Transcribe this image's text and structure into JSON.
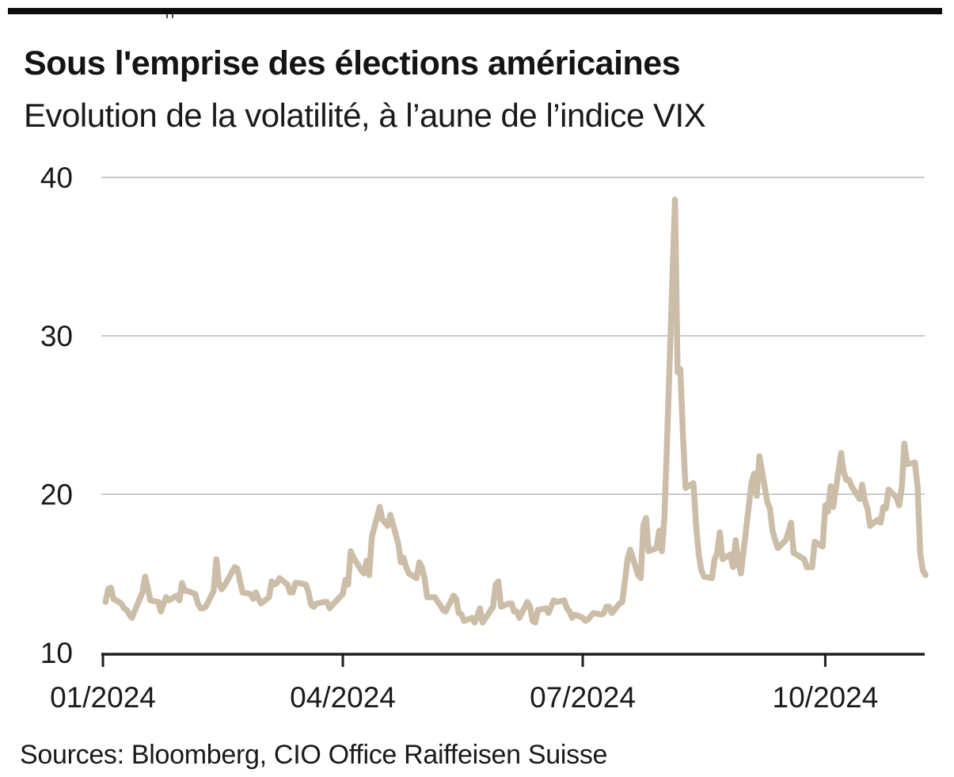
{
  "header": {
    "title": "Sous l'emprise des élections américaines",
    "subtitle": "Evolution de la volatilité, à l’aune de l’indice VIX"
  },
  "footer": {
    "source": "Sources: Bloomberg, CIO Office Raiffeisen Suisse"
  },
  "chart_data": {
    "type": "line",
    "title": "Sous l'emprise des élections américaines",
    "subtitle": "Evolution de la volatilité, à l’aune de l’indice VIX",
    "source": "Sources: Bloomberg, CIO Office Raiffeisen Suisse",
    "ylim": [
      10,
      40
    ],
    "yticks": [
      40,
      30,
      20,
      10
    ],
    "grid": "horizontal-only",
    "legend": "none",
    "line_color": "#cbbda7",
    "axis_color": "#1f1f1f",
    "grid_color": "#c9c9c9",
    "xticks": [
      {
        "label": "01/2024",
        "date": "01-01"
      },
      {
        "label": "04/2024",
        "date": "04-01"
      },
      {
        "label": "07/2024",
        "date": "07-01"
      },
      {
        "label": "10/2024",
        "date": "10-01"
      }
    ],
    "series": [
      {
        "name": "VIX",
        "year": 2024,
        "points": [
          [
            "01-02",
            13.2
          ],
          [
            "01-03",
            14.0
          ],
          [
            "01-04",
            14.1
          ],
          [
            "01-05",
            13.4
          ],
          [
            "01-08",
            13.1
          ],
          [
            "01-09",
            12.8
          ],
          [
            "01-10",
            12.7
          ],
          [
            "01-11",
            12.4
          ],
          [
            "01-12",
            12.2
          ],
          [
            "01-16",
            13.8
          ],
          [
            "01-17",
            14.8
          ],
          [
            "01-18",
            14.1
          ],
          [
            "01-19",
            13.3
          ],
          [
            "01-22",
            13.2
          ],
          [
            "01-23",
            12.6
          ],
          [
            "01-24",
            13.1
          ],
          [
            "01-25",
            13.5
          ],
          [
            "01-26",
            13.3
          ],
          [
            "01-29",
            13.6
          ],
          [
            "01-30",
            13.3
          ],
          [
            "01-31",
            14.4
          ],
          [
            "02-01",
            13.9
          ],
          [
            "02-02",
            13.9
          ],
          [
            "02-05",
            13.7
          ],
          [
            "02-06",
            13.1
          ],
          [
            "02-07",
            12.8
          ],
          [
            "02-08",
            12.8
          ],
          [
            "02-09",
            12.9
          ],
          [
            "02-12",
            13.9
          ],
          [
            "02-13",
            15.9
          ],
          [
            "02-14",
            14.4
          ],
          [
            "02-15",
            14.0
          ],
          [
            "02-16",
            14.2
          ],
          [
            "02-20",
            15.4
          ],
          [
            "02-21",
            15.3
          ],
          [
            "02-22",
            14.5
          ],
          [
            "02-23",
            13.8
          ],
          [
            "02-26",
            13.7
          ],
          [
            "02-27",
            13.4
          ],
          [
            "02-28",
            13.8
          ],
          [
            "02-29",
            13.4
          ],
          [
            "03-01",
            13.1
          ],
          [
            "03-04",
            13.5
          ],
          [
            "03-05",
            14.5
          ],
          [
            "03-06",
            14.3
          ],
          [
            "03-07",
            14.4
          ],
          [
            "03-08",
            14.7
          ],
          [
            "03-11",
            14.3
          ],
          [
            "03-12",
            13.8
          ],
          [
            "03-13",
            13.8
          ],
          [
            "03-14",
            14.4
          ],
          [
            "03-15",
            14.4
          ],
          [
            "03-18",
            14.3
          ],
          [
            "03-19",
            13.8
          ],
          [
            "03-20",
            13.0
          ],
          [
            "03-21",
            12.9
          ],
          [
            "03-22",
            13.1
          ],
          [
            "03-25",
            13.2
          ],
          [
            "03-26",
            13.2
          ],
          [
            "03-27",
            12.8
          ],
          [
            "03-28",
            13.0
          ],
          [
            "04-01",
            13.7
          ],
          [
            "04-02",
            14.6
          ],
          [
            "04-03",
            14.3
          ],
          [
            "04-04",
            16.4
          ],
          [
            "04-05",
            16.0
          ],
          [
            "04-08",
            15.2
          ],
          [
            "04-09",
            15.0
          ],
          [
            "04-10",
            15.8
          ],
          [
            "04-11",
            14.9
          ],
          [
            "04-12",
            17.3
          ],
          [
            "04-15",
            19.2
          ],
          [
            "04-16",
            18.4
          ],
          [
            "04-17",
            18.2
          ],
          [
            "04-18",
            18.0
          ],
          [
            "04-19",
            18.7
          ],
          [
            "04-22",
            16.9
          ],
          [
            "04-23",
            15.7
          ],
          [
            "04-24",
            16.0
          ],
          [
            "04-25",
            15.4
          ],
          [
            "04-26",
            15.0
          ],
          [
            "04-29",
            14.7
          ],
          [
            "04-30",
            15.7
          ],
          [
            "05-01",
            15.4
          ],
          [
            "05-02",
            14.7
          ],
          [
            "05-03",
            13.5
          ],
          [
            "05-06",
            13.5
          ],
          [
            "05-07",
            13.2
          ],
          [
            "05-08",
            13.0
          ],
          [
            "05-09",
            12.7
          ],
          [
            "05-10",
            12.6
          ],
          [
            "05-13",
            13.6
          ],
          [
            "05-14",
            13.4
          ],
          [
            "05-15",
            12.5
          ],
          [
            "05-16",
            12.4
          ],
          [
            "05-17",
            12.0
          ],
          [
            "05-20",
            12.2
          ],
          [
            "05-21",
            11.9
          ],
          [
            "05-22",
            12.3
          ],
          [
            "05-23",
            12.8
          ],
          [
            "05-24",
            11.9
          ],
          [
            "05-28",
            12.9
          ],
          [
            "05-29",
            14.3
          ],
          [
            "05-30",
            14.5
          ],
          [
            "05-31",
            12.9
          ],
          [
            "06-03",
            13.1
          ],
          [
            "06-04",
            13.1
          ],
          [
            "06-05",
            12.6
          ],
          [
            "06-06",
            12.6
          ],
          [
            "06-07",
            12.2
          ],
          [
            "06-10",
            13.2
          ],
          [
            "06-11",
            12.9
          ],
          [
            "06-12",
            12.0
          ],
          [
            "06-13",
            11.9
          ],
          [
            "06-14",
            12.7
          ],
          [
            "06-17",
            12.8
          ],
          [
            "06-18",
            12.5
          ],
          [
            "06-20",
            13.3
          ],
          [
            "06-21",
            13.2
          ],
          [
            "06-24",
            13.3
          ],
          [
            "06-25",
            12.8
          ],
          [
            "06-26",
            12.6
          ],
          [
            "06-27",
            12.2
          ],
          [
            "06-28",
            12.4
          ],
          [
            "07-01",
            12.2
          ],
          [
            "07-02",
            12.0
          ],
          [
            "07-03",
            12.1
          ],
          [
            "07-05",
            12.5
          ],
          [
            "07-08",
            12.4
          ],
          [
            "07-09",
            12.5
          ],
          [
            "07-10",
            12.9
          ],
          [
            "07-11",
            12.9
          ],
          [
            "07-12",
            12.5
          ],
          [
            "07-15",
            13.1
          ],
          [
            "07-16",
            13.2
          ],
          [
            "07-17",
            14.5
          ],
          [
            "07-18",
            15.9
          ],
          [
            "07-19",
            16.5
          ],
          [
            "07-22",
            14.9
          ],
          [
            "07-23",
            14.7
          ],
          [
            "07-24",
            18.0
          ],
          [
            "07-25",
            18.5
          ],
          [
            "07-26",
            16.4
          ],
          [
            "07-29",
            16.6
          ],
          [
            "07-30",
            17.7
          ],
          [
            "07-31",
            16.4
          ],
          [
            "08-01",
            18.6
          ],
          [
            "08-02",
            23.4
          ],
          [
            "08-05",
            38.6
          ],
          [
            "08-06",
            27.7
          ],
          [
            "08-07",
            27.9
          ],
          [
            "08-08",
            23.8
          ],
          [
            "08-09",
            20.4
          ],
          [
            "08-12",
            20.7
          ],
          [
            "08-13",
            18.0
          ],
          [
            "08-14",
            16.2
          ],
          [
            "08-15",
            15.2
          ],
          [
            "08-16",
            14.8
          ],
          [
            "08-19",
            14.7
          ],
          [
            "08-20",
            15.9
          ],
          [
            "08-21",
            16.3
          ],
          [
            "08-22",
            17.6
          ],
          [
            "08-23",
            15.9
          ],
          [
            "08-26",
            16.2
          ],
          [
            "08-27",
            15.4
          ],
          [
            "08-28",
            17.1
          ],
          [
            "08-29",
            15.7
          ],
          [
            "08-30",
            15.0
          ],
          [
            "09-03",
            20.7
          ],
          [
            "09-04",
            21.3
          ],
          [
            "09-05",
            19.9
          ],
          [
            "09-06",
            22.4
          ],
          [
            "09-09",
            19.5
          ],
          [
            "09-10",
            19.1
          ],
          [
            "09-11",
            17.7
          ],
          [
            "09-12",
            17.1
          ],
          [
            "09-13",
            16.6
          ],
          [
            "09-16",
            17.1
          ],
          [
            "09-17",
            17.6
          ],
          [
            "09-18",
            18.2
          ],
          [
            "09-19",
            16.3
          ],
          [
            "09-20",
            16.2
          ],
          [
            "09-23",
            15.9
          ],
          [
            "09-24",
            15.4
          ],
          [
            "09-25",
            15.4
          ],
          [
            "09-26",
            15.4
          ],
          [
            "09-27",
            17.0
          ],
          [
            "09-30",
            16.7
          ],
          [
            "10-01",
            19.3
          ],
          [
            "10-02",
            18.9
          ],
          [
            "10-03",
            20.5
          ],
          [
            "10-04",
            19.2
          ],
          [
            "10-07",
            22.6
          ],
          [
            "10-08",
            21.4
          ],
          [
            "10-09",
            20.9
          ],
          [
            "10-10",
            20.9
          ],
          [
            "10-11",
            20.5
          ],
          [
            "10-14",
            19.7
          ],
          [
            "10-15",
            20.6
          ],
          [
            "10-16",
            19.6
          ],
          [
            "10-17",
            19.1
          ],
          [
            "10-18",
            18.0
          ],
          [
            "10-21",
            18.4
          ],
          [
            "10-22",
            18.2
          ],
          [
            "10-23",
            19.2
          ],
          [
            "10-24",
            19.1
          ],
          [
            "10-25",
            20.3
          ],
          [
            "10-28",
            19.8
          ],
          [
            "10-29",
            19.3
          ],
          [
            "10-30",
            20.4
          ],
          [
            "10-31",
            23.2
          ],
          [
            "11-01",
            21.9
          ],
          [
            "11-04",
            22.0
          ],
          [
            "11-05",
            20.5
          ],
          [
            "11-06",
            16.3
          ],
          [
            "11-07",
            15.2
          ],
          [
            "11-08",
            14.9
          ]
        ]
      }
    ]
  }
}
